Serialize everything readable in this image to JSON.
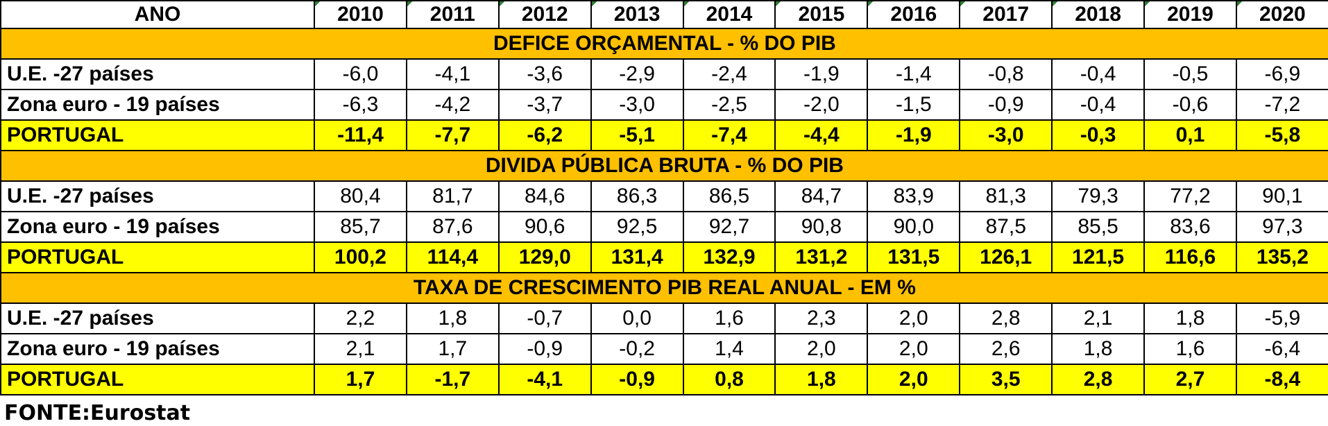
{
  "chart_data": {
    "type": "table",
    "header_label": "ANO",
    "years": [
      "2010",
      "2011",
      "2012",
      "2013",
      "2014",
      "2015",
      "2016",
      "2017",
      "2018",
      "2019",
      "2020"
    ],
    "sections": [
      {
        "title": "DEFICE ORÇAMENTAL - % DO PIB",
        "rows": [
          {
            "label": "U.E. -27 países",
            "values": [
              "-6,0",
              "-4,1",
              "-3,6",
              "-2,9",
              "-2,4",
              "-1,9",
              "-1,4",
              "-0,8",
              "-0,4",
              "-0,5",
              "-6,9"
            ]
          },
          {
            "label": "Zona euro - 19 países",
            "values": [
              "-6,3",
              "-4,2",
              "-3,7",
              "-3,0",
              "-2,5",
              "-2,0",
              "-1,5",
              "-0,9",
              "-0,4",
              "-0,6",
              "-7,2"
            ]
          },
          {
            "label": "PORTUGAL",
            "highlight": true,
            "values": [
              "-11,4",
              "-7,7",
              "-6,2",
              "-5,1",
              "-7,4",
              "-4,4",
              "-1,9",
              "-3,0",
              "-0,3",
              "0,1",
              "-5,8"
            ]
          }
        ]
      },
      {
        "title": "DIVIDA PÚBLICA BRUTA - % DO PIB",
        "rows": [
          {
            "label": "U.E. -27 países",
            "values": [
              "80,4",
              "81,7",
              "84,6",
              "86,3",
              "86,5",
              "84,7",
              "83,9",
              "81,3",
              "79,3",
              "77,2",
              "90,1"
            ]
          },
          {
            "label": "Zona euro - 19 países",
            "values": [
              "85,7",
              "87,6",
              "90,6",
              "92,5",
              "92,7",
              "90,8",
              "90,0",
              "87,5",
              "85,5",
              "83,6",
              "97,3"
            ]
          },
          {
            "label": "PORTUGAL",
            "highlight": true,
            "values": [
              "100,2",
              "114,4",
              "129,0",
              "131,4",
              "132,9",
              "131,2",
              "131,5",
              "126,1",
              "121,5",
              "116,6",
              "135,2"
            ]
          }
        ]
      },
      {
        "title": "TAXA DE CRESCIMENTO PIB REAL ANUAL - EM %",
        "rows": [
          {
            "label": "U.E. -27 países",
            "values": [
              "2,2",
              "1,8",
              "-0,7",
              "0,0",
              "1,6",
              "2,3",
              "2,0",
              "2,8",
              "2,1",
              "1,8",
              "-5,9"
            ]
          },
          {
            "label": "Zona euro - 19 países",
            "values": [
              "2,1",
              "1,7",
              "-0,9",
              "-0,2",
              "1,4",
              "2,0",
              "2,0",
              "2,6",
              "1,8",
              "1,6",
              "-6,4"
            ]
          },
          {
            "label": "PORTUGAL",
            "highlight": true,
            "values": [
              "1,7",
              "-1,7",
              "-4,1",
              "-0,9",
              "0,8",
              "1,8",
              "2,0",
              "3,5",
              "2,8",
              "2,7",
              "-8,4"
            ]
          }
        ]
      }
    ],
    "source": "FONTE:Eurostat",
    "colors": {
      "section_bg": "#ffc000",
      "highlight_bg": "#ffff00",
      "border": "#000000",
      "corner_mark": "#2e7d32"
    }
  }
}
